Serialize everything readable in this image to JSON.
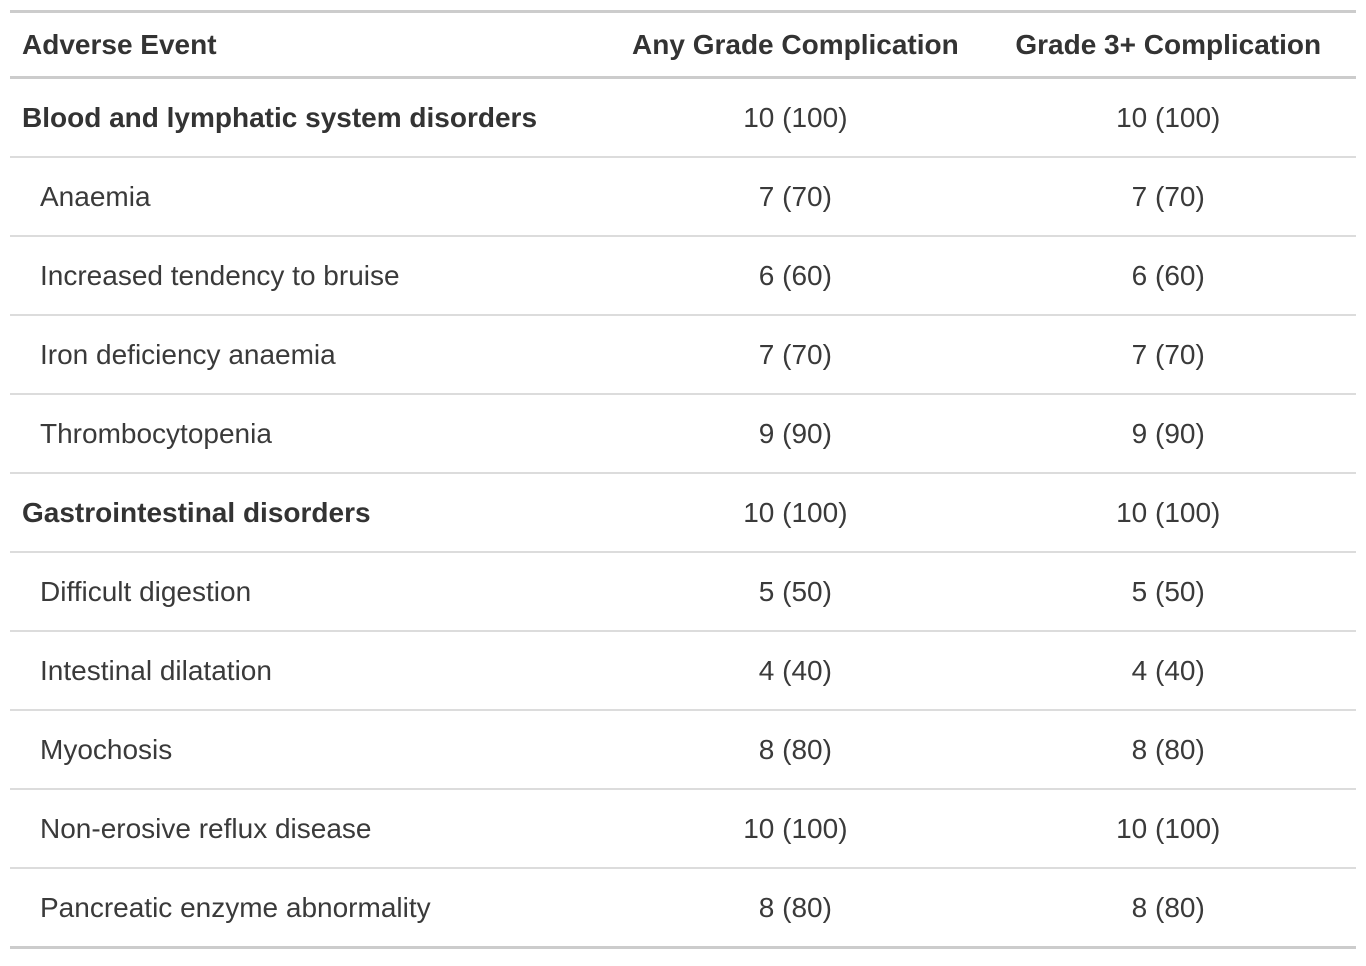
{
  "colors": {
    "background": "#ffffff",
    "text_primary": "#333333",
    "text_body": "#3a3a3a",
    "border_strong": "#cccccc",
    "border_light": "#dcdcdc"
  },
  "chart_data": {
    "type": "table",
    "title": "",
    "value_format": "n (%)",
    "columns": [
      "Adverse Event",
      "Any Grade Complication",
      "Grade 3+ Complication"
    ],
    "rows": [
      {
        "label": "Blood and lymphatic system disorders",
        "is_group": true,
        "any_grade_n": 10,
        "any_grade_pct": 100,
        "grade3_n": 10,
        "grade3_pct": 100,
        "any_grade_display": "10 (100)",
        "grade3_display": "10 (100)"
      },
      {
        "label": "Anaemia",
        "is_group": false,
        "any_grade_n": 7,
        "any_grade_pct": 70,
        "grade3_n": 7,
        "grade3_pct": 70,
        "any_grade_display": "7 (70)",
        "grade3_display": "7 (70)"
      },
      {
        "label": "Increased tendency to bruise",
        "is_group": false,
        "any_grade_n": 6,
        "any_grade_pct": 60,
        "grade3_n": 6,
        "grade3_pct": 60,
        "any_grade_display": "6 (60)",
        "grade3_display": "6 (60)"
      },
      {
        "label": "Iron deficiency anaemia",
        "is_group": false,
        "any_grade_n": 7,
        "any_grade_pct": 70,
        "grade3_n": 7,
        "grade3_pct": 70,
        "any_grade_display": "7 (70)",
        "grade3_display": "7 (70)"
      },
      {
        "label": "Thrombocytopenia",
        "is_group": false,
        "any_grade_n": 9,
        "any_grade_pct": 90,
        "grade3_n": 9,
        "grade3_pct": 90,
        "any_grade_display": "9 (90)",
        "grade3_display": "9 (90)"
      },
      {
        "label": "Gastrointestinal disorders",
        "is_group": true,
        "any_grade_n": 10,
        "any_grade_pct": 100,
        "grade3_n": 10,
        "grade3_pct": 100,
        "any_grade_display": "10 (100)",
        "grade3_display": "10 (100)"
      },
      {
        "label": "Difficult digestion",
        "is_group": false,
        "any_grade_n": 5,
        "any_grade_pct": 50,
        "grade3_n": 5,
        "grade3_pct": 50,
        "any_grade_display": "5 (50)",
        "grade3_display": "5 (50)"
      },
      {
        "label": "Intestinal dilatation",
        "is_group": false,
        "any_grade_n": 4,
        "any_grade_pct": 40,
        "grade3_n": 4,
        "grade3_pct": 40,
        "any_grade_display": "4 (40)",
        "grade3_display": "4 (40)"
      },
      {
        "label": "Myochosis",
        "is_group": false,
        "any_grade_n": 8,
        "any_grade_pct": 80,
        "grade3_n": 8,
        "grade3_pct": 80,
        "any_grade_display": "8 (80)",
        "grade3_display": "8 (80)"
      },
      {
        "label": "Non-erosive reflux disease",
        "is_group": false,
        "any_grade_n": 10,
        "any_grade_pct": 100,
        "grade3_n": 10,
        "grade3_pct": 100,
        "any_grade_display": "10 (100)",
        "grade3_display": "10 (100)"
      },
      {
        "label": "Pancreatic enzyme abnormality",
        "is_group": false,
        "any_grade_n": 8,
        "any_grade_pct": 80,
        "grade3_n": 8,
        "grade3_pct": 80,
        "any_grade_display": "8 (80)",
        "grade3_display": "8 (80)"
      }
    ]
  }
}
